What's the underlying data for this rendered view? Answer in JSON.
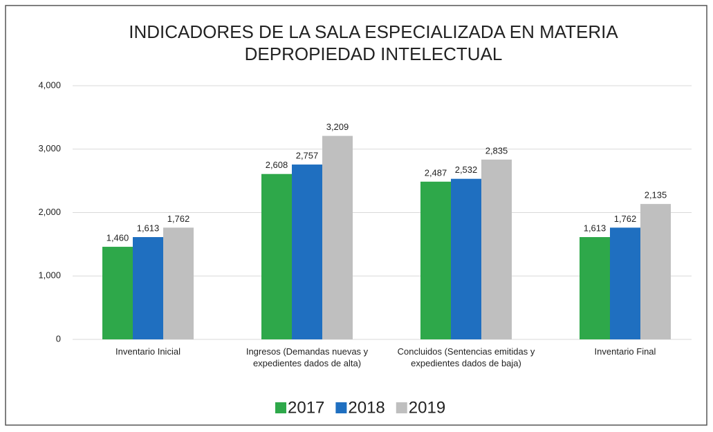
{
  "chart_data": {
    "type": "bar",
    "title": "INDICADORES DE LA SALA ESPECIALIZADA EN MATERIA DE PROPIEDAD INTELECTUAL",
    "categories": [
      "Inventario Inicial",
      "Ingresos (Demandas nuevas y expedientes dados de alta)",
      "Concluidos (Sentencias emitidas y expedientes dados de baja)",
      "Inventario Final"
    ],
    "series": [
      {
        "name": "2017",
        "color": "#2ea84a",
        "values": [
          1460,
          2608,
          2487,
          1613
        ],
        "value_labels": [
          "1,460",
          "2,608",
          "2,487",
          "1,613"
        ]
      },
      {
        "name": "2018",
        "color": "#1f6fc0",
        "values": [
          1613,
          2757,
          2532,
          1762
        ],
        "value_labels": [
          "1,613",
          "2,757",
          "2,532",
          "1,762"
        ]
      },
      {
        "name": "2019",
        "color": "#bfbfbf",
        "values": [
          1762,
          3209,
          2835,
          2135
        ],
        "value_labels": [
          "1,762",
          "3,209",
          "2,835",
          "2,135"
        ]
      }
    ],
    "ylim": [
      0,
      4000
    ],
    "yticks": [
      0,
      {
        "value": 1000,
        "label": "1,000"
      },
      {
        "value": 2000,
        "label": "2,000"
      },
      {
        "value": 3000,
        "label": "3,000"
      },
      {
        "value": 4000,
        "label": "4,000"
      }
    ],
    "grid": true,
    "legend": "bottom"
  }
}
